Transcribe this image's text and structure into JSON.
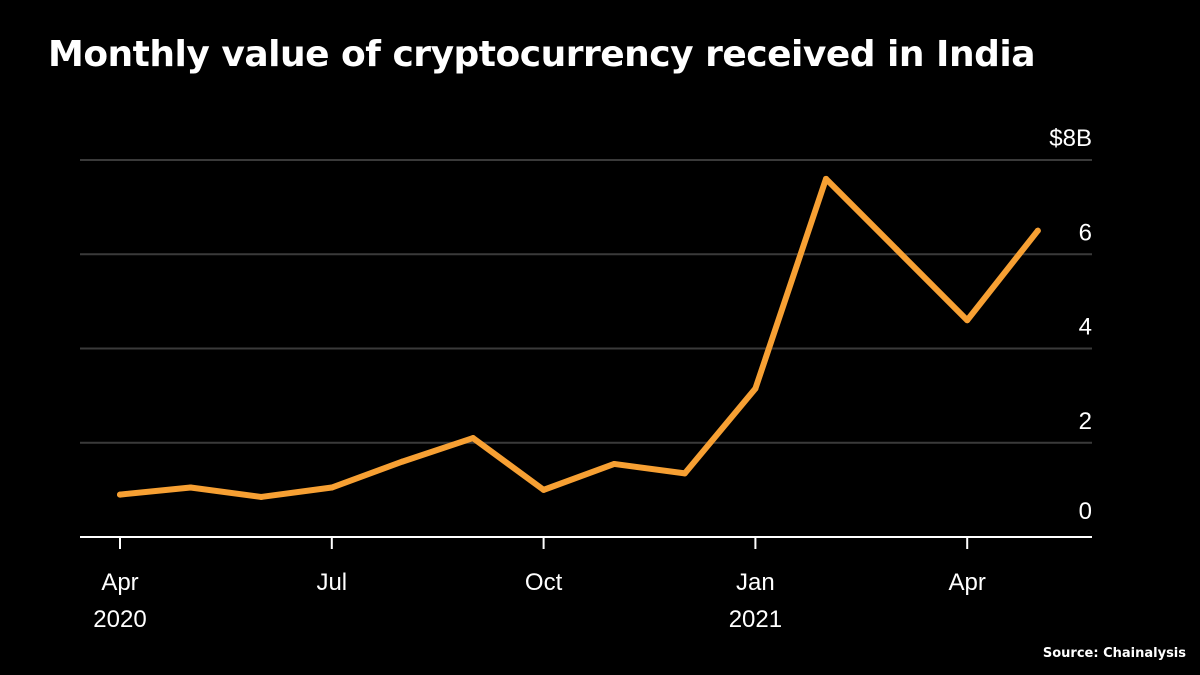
{
  "title": "Monthly value of cryptocurrency received in India",
  "source": "Source: Chainalysis",
  "colors": {
    "background": "#000000",
    "line": "#f7a033",
    "grid": "#3a3a3a",
    "text": "#ffffff"
  },
  "chart_data": {
    "type": "line",
    "title": "Monthly value of cryptocurrency received in India",
    "ylabel": "",
    "xlabel": "",
    "ylim": [
      0,
      8
    ],
    "y_unit_prefix": "$",
    "y_unit_suffix": "B",
    "grid": true,
    "y_axis_side": "right",
    "x": [
      "2020-04",
      "2020-05",
      "2020-06",
      "2020-07",
      "2020-08",
      "2020-09",
      "2020-10",
      "2020-11",
      "2020-12",
      "2021-01",
      "2021-02",
      "2021-03",
      "2021-04",
      "2021-05"
    ],
    "series": [
      {
        "values": [
          0.9,
          1.05,
          0.85,
          1.05,
          1.6,
          2.1,
          1.0,
          1.55,
          1.35,
          3.15,
          7.6,
          6.1,
          4.6,
          6.5
        ]
      }
    ],
    "y_ticks": [
      {
        "value": 0,
        "label": "0"
      },
      {
        "value": 2,
        "label": "2"
      },
      {
        "value": 4,
        "label": "4"
      },
      {
        "value": 6,
        "label": "6"
      },
      {
        "value": 8,
        "label": "$8B"
      }
    ],
    "x_ticks": [
      {
        "x": "2020-04",
        "label": "Apr",
        "sublabel": "2020"
      },
      {
        "x": "2020-07",
        "label": "Jul",
        "sublabel": ""
      },
      {
        "x": "2020-10",
        "label": "Oct",
        "sublabel": ""
      },
      {
        "x": "2021-01",
        "label": "Jan",
        "sublabel": "2021"
      },
      {
        "x": "2021-04",
        "label": "Apr",
        "sublabel": ""
      }
    ]
  }
}
